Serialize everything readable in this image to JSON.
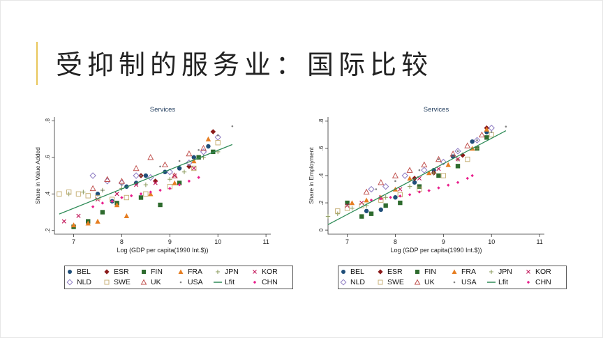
{
  "slide": {
    "title": "受抑制的服务业：国际比较"
  },
  "colors": {
    "BEL": "#1f4e79",
    "ESR": "#8b1a1a",
    "FIN": "#2e6b2e",
    "FRA": "#e67e22",
    "JPN": "#8a9a5b",
    "KOR": "#c2185b",
    "NLD": "#8e7cc3",
    "SWE": "#c8b27a",
    "UK": "#c0504d",
    "USA": "#808080",
    "Lfit": "#2e8b57",
    "CHN": "#e91e8c"
  },
  "legend": {
    "rows": [
      [
        {
          "key": "BEL",
          "label": "BEL",
          "icon": "circle-filled-icon"
        },
        {
          "key": "ESR",
          "label": "ESR",
          "icon": "diamond-filled-icon"
        },
        {
          "key": "FIN",
          "label": "FIN",
          "icon": "square-filled-icon"
        },
        {
          "key": "FRA",
          "label": "FRA",
          "icon": "triangle-filled-icon"
        },
        {
          "key": "JPN",
          "label": "JPN",
          "icon": "plus-icon"
        },
        {
          "key": "KOR",
          "label": "KOR",
          "icon": "x-icon"
        }
      ],
      [
        {
          "key": "NLD",
          "label": "NLD",
          "icon": "diamond-hollow-icon"
        },
        {
          "key": "SWE",
          "label": "SWE",
          "icon": "square-hollow-icon"
        },
        {
          "key": "UK",
          "label": "UK",
          "icon": "triangle-hollow-icon"
        },
        {
          "key": "USA",
          "label": "USA",
          "icon": "dot-icon"
        },
        {
          "key": "Lfit",
          "label": "Lfit",
          "icon": "line-icon"
        },
        {
          "key": "CHN",
          "label": "CHN",
          "icon": "diamond-small-icon"
        }
      ]
    ]
  },
  "chart_data": [
    {
      "type": "scatter",
      "title": "Services",
      "xlabel": "Log (GDP per capita(1990 Int.$))",
      "ylabel": "Share in Value Added",
      "xlim": [
        6.6,
        11.1
      ],
      "ylim": [
        0.18,
        0.82
      ],
      "xticks": [
        "7",
        "8",
        "9",
        "10",
        "11"
      ],
      "xtick_values": [
        7,
        8,
        9,
        10,
        11
      ],
      "yticks": [
        ".2",
        ".4",
        ".6",
        ".8"
      ],
      "ytick_values": [
        0.2,
        0.4,
        0.6,
        0.8
      ],
      "fit_line": {
        "x": [
          6.7,
          10.3
        ],
        "y": [
          0.29,
          0.67
        ]
      },
      "series": [
        {
          "name": "BEL",
          "x": [
            7.5,
            7.8,
            8.1,
            8.3,
            8.5,
            8.9,
            9.2,
            9.5,
            9.8
          ],
          "y": [
            0.4,
            0.36,
            0.44,
            0.46,
            0.5,
            0.52,
            0.54,
            0.6,
            0.66
          ]
        },
        {
          "name": "ESR",
          "x": [
            8.4,
            8.7,
            9.4,
            9.9
          ],
          "y": [
            0.5,
            0.47,
            0.55,
            0.74
          ]
        },
        {
          "name": "FIN",
          "x": [
            7.0,
            7.3,
            7.6,
            7.9,
            8.4,
            8.8,
            9.2,
            9.6,
            9.9
          ],
          "y": [
            0.22,
            0.25,
            0.3,
            0.35,
            0.38,
            0.34,
            0.46,
            0.6,
            0.63
          ]
        },
        {
          "name": "FRA",
          "x": [
            7.0,
            7.3,
            7.5,
            7.9,
            8.1,
            8.6,
            9.1,
            9.5,
            9.8
          ],
          "y": [
            0.23,
            0.24,
            0.25,
            0.34,
            0.28,
            0.4,
            0.46,
            0.58,
            0.7
          ]
        },
        {
          "name": "JPN",
          "x": [
            6.9,
            7.2,
            7.6,
            8.0,
            8.5,
            9.0,
            9.3,
            9.7,
            10.0
          ],
          "y": [
            0.4,
            0.41,
            0.42,
            0.43,
            0.45,
            0.48,
            0.52,
            0.6,
            0.63
          ]
        },
        {
          "name": "KOR",
          "x": [
            6.8,
            7.1,
            7.5,
            7.9,
            8.3,
            8.7,
            9.1,
            9.5
          ],
          "y": [
            0.25,
            0.28,
            0.37,
            0.4,
            0.45,
            0.46,
            0.5,
            0.54
          ]
        },
        {
          "name": "NLD",
          "x": [
            7.4,
            7.7,
            8.0,
            8.3,
            8.6,
            9.0,
            9.4,
            9.7,
            10.0
          ],
          "y": [
            0.5,
            0.47,
            0.46,
            0.5,
            0.49,
            0.52,
            0.57,
            0.63,
            0.71
          ]
        },
        {
          "name": "SWE",
          "x": [
            6.7,
            6.9,
            7.1,
            7.3,
            7.5,
            7.8,
            8.1,
            8.5,
            9.0,
            9.5,
            10.0
          ],
          "y": [
            0.4,
            0.41,
            0.4,
            0.39,
            0.38,
            0.37,
            0.38,
            0.4,
            0.44,
            0.54,
            0.68
          ]
        },
        {
          "name": "UK",
          "x": [
            7.4,
            7.7,
            8.0,
            8.3,
            8.6,
            8.9,
            9.1,
            9.4,
            9.7
          ],
          "y": [
            0.43,
            0.48,
            0.47,
            0.54,
            0.6,
            0.56,
            0.5,
            0.62,
            0.65
          ]
        },
        {
          "name": "USA",
          "x": [
            7.6,
            8.0,
            8.4,
            8.8,
            9.2,
            9.6,
            10.0,
            10.3
          ],
          "y": [
            0.42,
            0.45,
            0.5,
            0.55,
            0.58,
            0.64,
            0.72,
            0.77
          ]
        },
        {
          "name": "CHN",
          "x": [
            7.4,
            7.6,
            7.8,
            8.0,
            8.2,
            8.4,
            8.6,
            8.8,
            9.0,
            9.2,
            9.4,
            9.6
          ],
          "y": [
            0.33,
            0.35,
            0.36,
            0.38,
            0.39,
            0.4,
            0.41,
            0.42,
            0.43,
            0.45,
            0.47,
            0.49
          ]
        }
      ]
    },
    {
      "type": "scatter",
      "title": "Services",
      "xlabel": "Log (GDP per capita(1990 Int.$))",
      "ylabel": "Share in Employment",
      "xlim": [
        6.6,
        11.1
      ],
      "ylim": [
        -0.03,
        0.83
      ],
      "xticks": [
        "7",
        "8",
        "9",
        "10",
        "11"
      ],
      "xtick_values": [
        7,
        8,
        9,
        10,
        11
      ],
      "yticks": [
        "0",
        ".2",
        ".4",
        ".6",
        ".8"
      ],
      "ytick_values": [
        0,
        0.2,
        0.4,
        0.6,
        0.8
      ],
      "fit_line": {
        "x": [
          6.6,
          10.3
        ],
        "y": [
          0.04,
          0.73
        ]
      },
      "series": [
        {
          "name": "BEL",
          "x": [
            7.4,
            7.7,
            8.0,
            8.4,
            8.8,
            9.2,
            9.6,
            9.9
          ],
          "y": [
            0.14,
            0.15,
            0.24,
            0.35,
            0.44,
            0.54,
            0.65,
            0.72
          ]
        },
        {
          "name": "ESR",
          "x": [
            8.4,
            8.8,
            9.4,
            9.9
          ],
          "y": [
            0.38,
            0.42,
            0.55,
            0.75
          ]
        },
        {
          "name": "FIN",
          "x": [
            7.0,
            7.3,
            7.5,
            7.8,
            8.1,
            8.5,
            8.9,
            9.3,
            9.7,
            9.9
          ],
          "y": [
            0.2,
            0.1,
            0.12,
            0.18,
            0.2,
            0.32,
            0.4,
            0.47,
            0.6,
            0.68
          ]
        },
        {
          "name": "FRA",
          "x": [
            7.1,
            7.4,
            7.7,
            8.0,
            8.3,
            8.7,
            9.1,
            9.6,
            9.9
          ],
          "y": [
            0.2,
            0.22,
            0.24,
            0.3,
            0.38,
            0.42,
            0.48,
            0.6,
            0.74
          ]
        },
        {
          "name": "JPN",
          "x": [
            6.6,
            6.8,
            7.1,
            7.4,
            7.8,
            8.3,
            8.8,
            9.3,
            9.7
          ],
          "y": [
            0.1,
            0.12,
            0.16,
            0.18,
            0.24,
            0.32,
            0.42,
            0.52,
            0.6
          ]
        },
        {
          "name": "KOR",
          "x": [
            7.0,
            7.3,
            7.7,
            8.1,
            8.5,
            8.9,
            9.3
          ],
          "y": [
            0.18,
            0.2,
            0.24,
            0.3,
            0.38,
            0.45,
            0.52
          ]
        },
        {
          "name": "NLD",
          "x": [
            7.5,
            7.8,
            8.2,
            8.6,
            9.0,
            9.3,
            9.7,
            10.0
          ],
          "y": [
            0.3,
            0.32,
            0.4,
            0.44,
            0.5,
            0.58,
            0.66,
            0.75
          ]
        },
        {
          "name": "SWE",
          "x": [
            6.8,
            7.0,
            7.3,
            7.7,
            8.1,
            8.5,
            9.0,
            9.5,
            10.0
          ],
          "y": [
            0.14,
            0.16,
            0.18,
            0.22,
            0.26,
            0.3,
            0.4,
            0.52,
            0.7
          ]
        },
        {
          "name": "UK",
          "x": [
            7.4,
            7.7,
            8.0,
            8.3,
            8.6,
            8.9,
            9.2,
            9.5,
            9.8
          ],
          "y": [
            0.28,
            0.35,
            0.4,
            0.44,
            0.48,
            0.52,
            0.56,
            0.62,
            0.7
          ]
        },
        {
          "name": "USA",
          "x": [
            7.6,
            8.0,
            8.5,
            8.9,
            9.3,
            9.7,
            10.0,
            10.3
          ],
          "y": [
            0.3,
            0.36,
            0.44,
            0.52,
            0.58,
            0.66,
            0.72,
            0.76
          ]
        },
        {
          "name": "CHN",
          "x": [
            7.5,
            7.7,
            7.9,
            8.1,
            8.3,
            8.5,
            8.7,
            8.9,
            9.1,
            9.3,
            9.5,
            9.6
          ],
          "y": [
            0.22,
            0.23,
            0.24,
            0.25,
            0.26,
            0.28,
            0.29,
            0.31,
            0.33,
            0.35,
            0.38,
            0.4
          ]
        }
      ]
    }
  ]
}
